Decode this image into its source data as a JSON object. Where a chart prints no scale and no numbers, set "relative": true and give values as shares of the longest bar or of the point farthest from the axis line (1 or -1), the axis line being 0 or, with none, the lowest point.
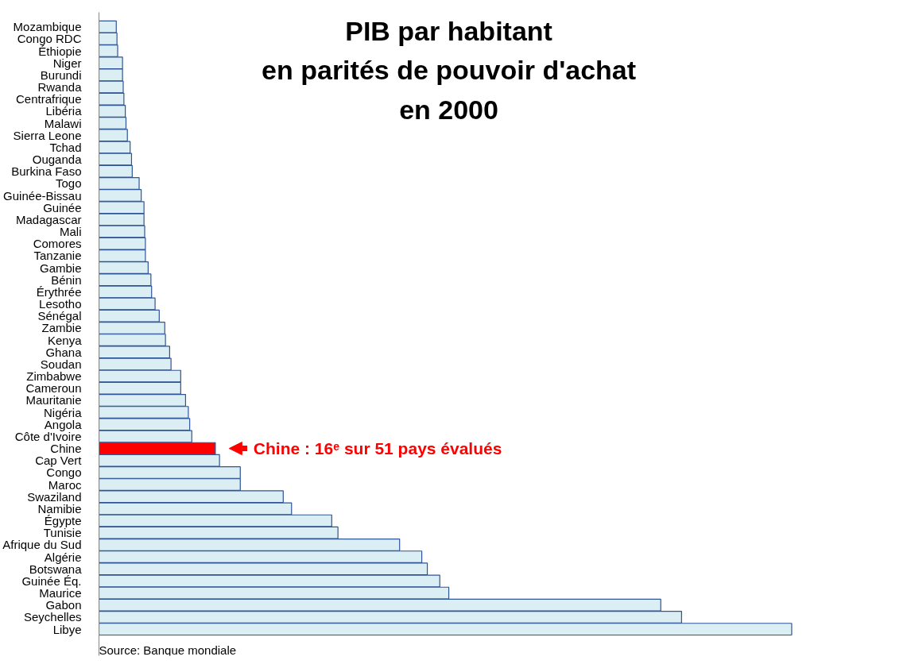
{
  "chart_data": {
    "type": "bar",
    "orientation": "horizontal",
    "relative": true,
    "title": "PIB par habitant\nen parités de pouvoir d'achat\nen 2000",
    "categories": [
      "Mozambique",
      "Congo RDC",
      "Éthiopie",
      "Niger",
      "Burundi",
      "Rwanda",
      "Centrafrique",
      "Libéria",
      "Malawi",
      "Sierra Leone",
      "Tchad",
      "Ouganda",
      "Burkina Faso",
      "Togo",
      "Guinée-Bissau",
      "Guinée",
      "Madagascar",
      "Mali",
      "Comores",
      "Tanzanie",
      "Gambie",
      "Bénin",
      "Érythrée",
      "Lesotho",
      "Sénégal",
      "Zambie",
      "Kenya",
      "Ghana",
      "Soudan",
      "Zimbabwe",
      "Cameroun",
      "Mauritanie",
      "Nigéria",
      "Angola",
      "Côte d'Ivoire",
      "Chine",
      "Cap Vert",
      "Congo",
      "Maroc",
      "Swaziland",
      "Namibie",
      "Égypte",
      "Tunisie",
      "Afrique du Sud",
      "Algérie",
      "Botswana",
      "Guinée Éq.",
      "Maurice",
      "Gabon",
      "Seychelles",
      "Libye"
    ],
    "values": [
      0.025,
      0.026,
      0.027,
      0.034,
      0.034,
      0.035,
      0.036,
      0.038,
      0.039,
      0.041,
      0.045,
      0.047,
      0.048,
      0.058,
      0.061,
      0.065,
      0.065,
      0.066,
      0.067,
      0.067,
      0.071,
      0.075,
      0.076,
      0.081,
      0.087,
      0.095,
      0.096,
      0.102,
      0.104,
      0.118,
      0.118,
      0.125,
      0.129,
      0.131,
      0.134,
      0.168,
      0.174,
      0.204,
      0.204,
      0.266,
      0.278,
      0.336,
      0.345,
      0.434,
      0.466,
      0.474,
      0.492,
      0.505,
      0.811,
      0.841,
      1
    ],
    "colors": [
      "#daeef3",
      "#daeef3",
      "#daeef3",
      "#daeef3",
      "#daeef3",
      "#daeef3",
      "#daeef3",
      "#daeef3",
      "#daeef3",
      "#daeef3",
      "#daeef3",
      "#daeef3",
      "#daeef3",
      "#daeef3",
      "#daeef3",
      "#daeef3",
      "#daeef3",
      "#daeef3",
      "#daeef3",
      "#daeef3",
      "#daeef3",
      "#daeef3",
      "#daeef3",
      "#daeef3",
      "#daeef3",
      "#daeef3",
      "#daeef3",
      "#daeef3",
      "#daeef3",
      "#daeef3",
      "#daeef3",
      "#daeef3",
      "#daeef3",
      "#daeef3",
      "#daeef3",
      "#ff0000",
      "#daeef3",
      "#daeef3",
      "#daeef3",
      "#daeef3",
      "#daeef3",
      "#daeef3",
      "#daeef3",
      "#daeef3",
      "#daeef3",
      "#daeef3",
      "#daeef3",
      "#daeef3",
      "#daeef3",
      "#daeef3",
      "#daeef3"
    ],
    "annotations": [
      {
        "text": "Chine : 16ᵉ sur 51 pays évalués",
        "x": 0.168,
        "y": "Chine"
      },
      "Source: Banque mondiale"
    ],
    "grid": false
  }
}
